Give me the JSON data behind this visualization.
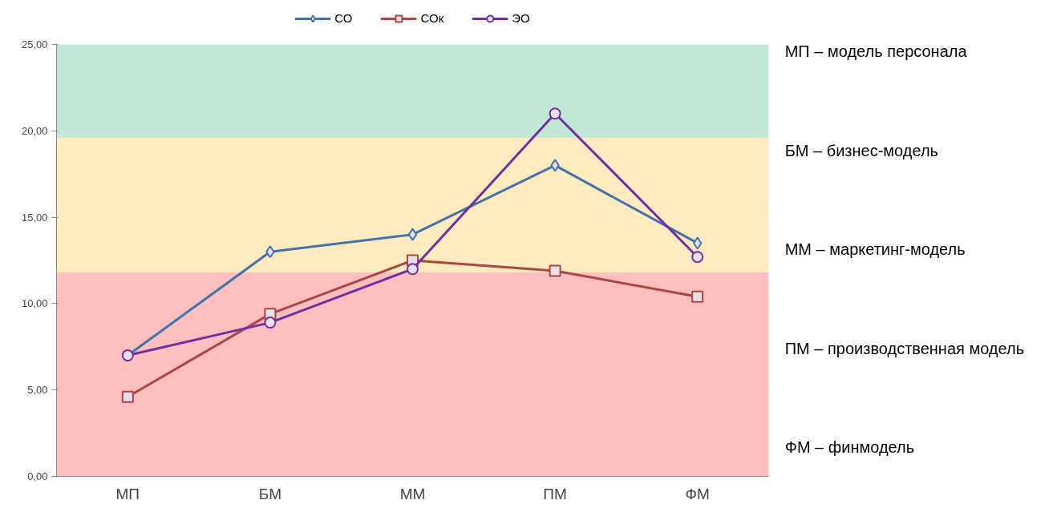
{
  "chart_data": {
    "type": "line",
    "categories": [
      "МП",
      "БМ",
      "ММ",
      "ПМ",
      "ФМ"
    ],
    "series": [
      {
        "name": "СО",
        "color": "#4572a7",
        "marker": "diamond",
        "values": [
          7.0,
          13.0,
          14.0,
          18.0,
          13.5
        ]
      },
      {
        "name": "СОк",
        "color": "#aa4643",
        "marker": "square",
        "values": [
          4.6,
          9.4,
          12.5,
          11.9,
          10.4
        ]
      },
      {
        "name": "ЭО",
        "color": "#7030a0",
        "marker": "circle",
        "values": [
          7.0,
          8.9,
          12.0,
          21.0,
          12.7
        ]
      }
    ],
    "ylim": [
      0,
      25
    ],
    "yticks": [
      {
        "value": 0,
        "label": "0,00"
      },
      {
        "value": 5,
        "label": "5,00"
      },
      {
        "value": 10,
        "label": "10,00"
      },
      {
        "value": 15,
        "label": "15,00"
      },
      {
        "value": 20,
        "label": "20,00"
      },
      {
        "value": 25,
        "label": "25,00"
      }
    ],
    "bands": [
      {
        "axis": "y",
        "from": 0,
        "to": 11.8,
        "color": "#ffbfbf"
      },
      {
        "axis": "y",
        "from": 11.8,
        "to": 19.6,
        "color": "#ffebbf"
      },
      {
        "axis": "y",
        "from": 19.6,
        "to": 25,
        "color": "#bfe9d4"
      }
    ],
    "grid": "y",
    "legend": "top",
    "annotations": [
      "МП – модель персонала",
      "БМ – бизнес-модель",
      "ММ – маркетинг-модель",
      "ПМ – производственная модель",
      "ФМ – финмодель"
    ]
  }
}
